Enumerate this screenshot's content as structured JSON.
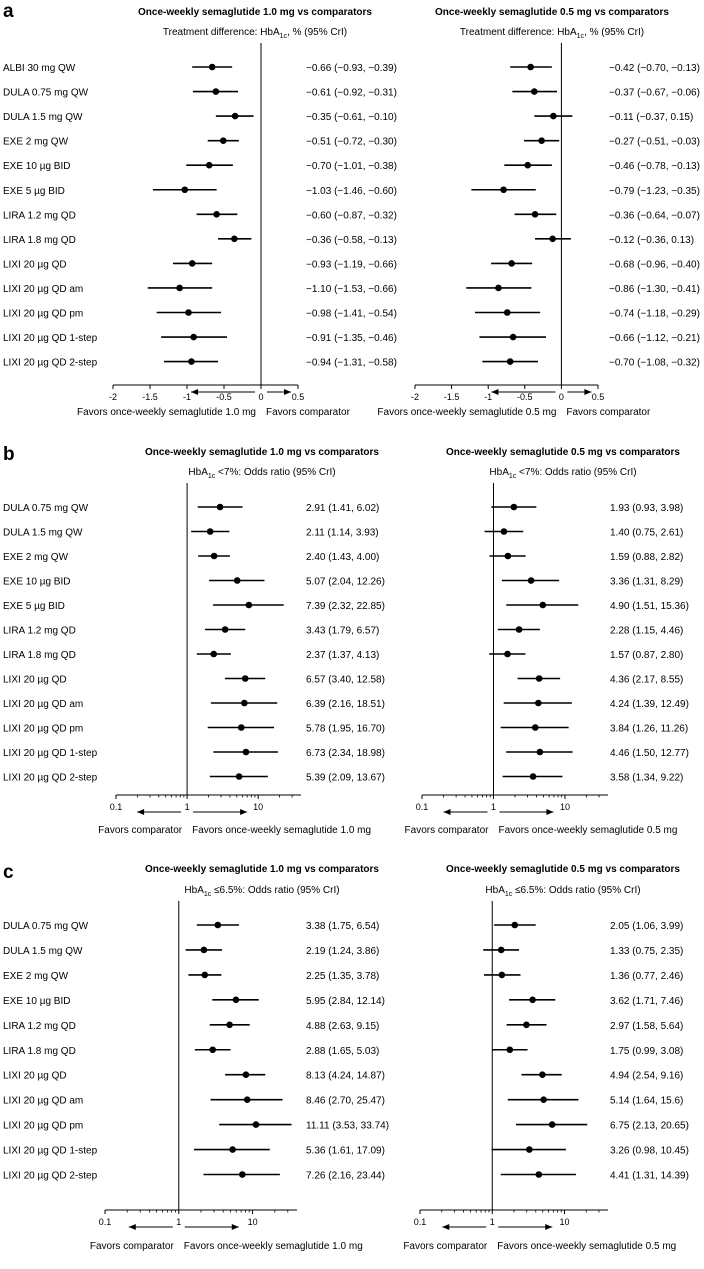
{
  "chart_data": [
    {
      "panel_label": "a",
      "type": "forest",
      "scale": "linear",
      "rows": [
        "ALBI 30 mg QW",
        "DULA 0.75 mg QW",
        "DULA 1.5 mg QW",
        "EXE 2 mg QW",
        "EXE 10 µg BID",
        "EXE 5 µg BID",
        "LIRA 1.2 mg QD",
        "LIRA 1.8 mg QD",
        "LIXI 20 µg QD",
        "LIXI 20 µg QD am",
        "LIXI 20 µg QD pm",
        "LIXI 20 µg QD 1-step",
        "LIXI 20 µg QD 2-step"
      ],
      "subplots": [
        {
          "title": "Once-weekly semaglutide 1.0 mg vs comparators",
          "subtitle_parts": [
            "Treatment difference: HbA",
            "1c",
            ", % (95% CrI)"
          ],
          "xlim": [
            -2,
            0.5
          ],
          "ref_line": 0,
          "ticks": [
            -2,
            -1.5,
            -1,
            -0.5,
            0,
            0.5
          ],
          "tick_labels": [
            "-2",
            "-1.5",
            "-1",
            "-0.5",
            "0",
            "0.5"
          ],
          "favors_left": "Favors once-weekly semaglutide 1.0 mg",
          "favors_right": "Favors comparator",
          "estimates": [
            -0.66,
            -0.61,
            -0.35,
            -0.51,
            -0.7,
            -1.03,
            -0.6,
            -0.36,
            -0.93,
            -1.1,
            -0.98,
            -0.91,
            -0.94
          ],
          "lower": [
            -0.93,
            -0.92,
            -0.61,
            -0.72,
            -1.01,
            -1.46,
            -0.87,
            -0.58,
            -1.19,
            -1.53,
            -1.41,
            -1.35,
            -1.31
          ],
          "upper": [
            -0.39,
            -0.31,
            -0.1,
            -0.3,
            -0.38,
            -0.6,
            -0.32,
            -0.13,
            -0.66,
            -0.66,
            -0.54,
            -0.46,
            -0.58
          ],
          "labels": [
            "−0.66 (−0.93, −0.39)",
            "−0.61 (−0.92, −0.31)",
            "−0.35 (−0.61, −0.10)",
            "−0.51 (−0.72, −0.30)",
            "−0.70 (−1.01, −0.38)",
            "−1.03 (−1.46, −0.60)",
            "−0.60 (−0.87, −0.32)",
            "−0.36 (−0.58, −0.13)",
            "−0.93 (−1.19, −0.66)",
            "−1.10 (−1.53, −0.66)",
            "−0.98 (−1.41, −0.54)",
            "−0.91 (−1.35, −0.46)",
            "−0.94 (−1.31, −0.58)"
          ]
        },
        {
          "title": "Once-weekly semaglutide 0.5 mg vs comparators",
          "subtitle_parts": [
            "Treatment difference: HbA",
            "1c",
            ", % (95% CrI)"
          ],
          "xlim": [
            -2,
            0.5
          ],
          "ref_line": 0,
          "ticks": [
            -2,
            -1.5,
            -1,
            -0.5,
            0,
            0.5
          ],
          "tick_labels": [
            "-2",
            "-1.5",
            "-1",
            "-0.5",
            "0",
            "0.5"
          ],
          "favors_left": "Favors once-weekly semaglutide 0.5 mg",
          "favors_right": "Favors comparator",
          "estimates": [
            -0.42,
            -0.37,
            -0.11,
            -0.27,
            -0.46,
            -0.79,
            -0.36,
            -0.12,
            -0.68,
            -0.86,
            -0.74,
            -0.66,
            -0.7
          ],
          "lower": [
            -0.7,
            -0.67,
            -0.37,
            -0.51,
            -0.78,
            -1.23,
            -0.64,
            -0.36,
            -0.96,
            -1.3,
            -1.18,
            -1.12,
            -1.08
          ],
          "upper": [
            -0.13,
            -0.06,
            0.15,
            -0.03,
            -0.13,
            -0.35,
            -0.07,
            0.13,
            -0.4,
            -0.41,
            -0.29,
            -0.21,
            -0.32
          ],
          "labels": [
            "−0.42 (−0.70, −0.13)",
            "−0.37 (−0.67, −0.06)",
            "−0.11 (−0.37, 0.15)",
            "−0.27 (−0.51, −0.03)",
            "−0.46 (−0.78, −0.13)",
            "−0.79 (−1.23, −0.35)",
            "−0.36 (−0.64, −0.07)",
            "−0.12 (−0.36, 0.13)",
            "−0.68 (−0.96, −0.40)",
            "−0.86 (−1.30, −0.41)",
            "−0.74 (−1.18, −0.29)",
            "−0.66 (−1.12, −0.21)",
            "−0.70 (−1.08, −0.32)"
          ]
        }
      ]
    },
    {
      "panel_label": "b",
      "type": "forest",
      "scale": "log",
      "rows": [
        "DULA 0.75 mg QW",
        "DULA 1.5 mg QW",
        "EXE 2 mg QW",
        "EXE 10 µg BID",
        "EXE 5 µg BID",
        "LIRA 1.2 mg QD",
        "LIRA 1.8 mg QD",
        "LIXI 20 µg QD",
        "LIXI 20 µg QD am",
        "LIXI 20 µg QD pm",
        "LIXI 20 µg QD 1-step",
        "LIXI 20 µg QD 2-step"
      ],
      "subplots": [
        {
          "title": "Once-weekly semaglutide 1.0 mg vs comparators",
          "subtitle_parts": [
            "HbA",
            "1c",
            " <7%: Odds ratio (95% CrI)"
          ],
          "xlim": [
            0.1,
            40
          ],
          "ref_line": 1,
          "ticks": [
            0.1,
            1,
            10
          ],
          "tick_labels": [
            "0.1",
            "1",
            "10"
          ],
          "favors_left": "Favors comparator",
          "favors_right": "Favors once-weekly semaglutide 1.0 mg",
          "estimates": [
            2.91,
            2.11,
            2.4,
            5.07,
            7.39,
            3.43,
            2.37,
            6.57,
            6.39,
            5.78,
            6.73,
            5.39
          ],
          "lower": [
            1.41,
            1.14,
            1.43,
            2.04,
            2.32,
            1.79,
            1.37,
            3.4,
            2.16,
            1.95,
            2.34,
            2.09
          ],
          "upper": [
            6.02,
            3.93,
            4.0,
            12.26,
            22.85,
            6.57,
            4.13,
            12.58,
            18.51,
            16.7,
            18.98,
            13.67
          ],
          "labels": [
            "2.91 (1.41, 6.02)",
            "2.11 (1.14, 3.93)",
            "2.40 (1.43, 4.00)",
            "5.07 (2.04, 12.26)",
            "7.39 (2.32, 22.85)",
            "3.43 (1.79, 6.57)",
            "2.37 (1.37, 4.13)",
            "6.57 (3.40, 12.58)",
            "6.39 (2.16, 18.51)",
            "5.78 (1.95, 16.70)",
            "6.73 (2.34, 18.98)",
            "5.39 (2.09, 13.67)"
          ]
        },
        {
          "title": "Once-weekly semaglutide 0.5 mg vs comparators",
          "subtitle_parts": [
            "HbA",
            "1c",
            " <7%: Odds ratio (95% CrI)"
          ],
          "xlim": [
            0.1,
            40
          ],
          "ref_line": 1,
          "ticks": [
            0.1,
            1,
            10
          ],
          "tick_labels": [
            "0.1",
            "1",
            "10"
          ],
          "favors_left": "Favors comparator",
          "favors_right": "Favors once-weekly semaglutide 0.5 mg",
          "estimates": [
            1.93,
            1.4,
            1.59,
            3.36,
            4.9,
            2.28,
            1.57,
            4.36,
            4.24,
            3.84,
            4.46,
            3.58
          ],
          "lower": [
            0.93,
            0.75,
            0.88,
            1.31,
            1.51,
            1.15,
            0.87,
            2.17,
            1.39,
            1.26,
            1.5,
            1.34
          ],
          "upper": [
            3.98,
            2.61,
            2.82,
            8.29,
            15.36,
            4.46,
            2.8,
            8.55,
            12.49,
            11.26,
            12.77,
            9.22
          ],
          "labels": [
            "1.93 (0.93, 3.98)",
            "1.40 (0.75, 2.61)",
            "1.59 (0.88, 2.82)",
            "3.36 (1.31, 8.29)",
            "4.90 (1.51, 15.36)",
            "2.28 (1.15, 4.46)",
            "1.57 (0.87, 2.80)",
            "4.36 (2.17, 8.55)",
            "4.24 (1.39, 12.49)",
            "3.84 (1.26, 11.26)",
            "4.46 (1.50, 12.77)",
            "3.58 (1.34, 9.22)"
          ]
        }
      ]
    },
    {
      "panel_label": "c",
      "type": "forest",
      "scale": "log",
      "rows": [
        "DULA 0.75 mg QW",
        "DULA 1.5 mg QW",
        "EXE 2 mg QW",
        "EXE 10 µg BID",
        "LIRA 1.2 mg QD",
        "LIRA 1.8 mg QD",
        "LIXI 20 µg QD",
        "LIXI 20 µg QD am",
        "LIXI 20 µg QD pm",
        "LIXI 20 µg QD 1-step",
        "LIXI 20 µg QD 2-step"
      ],
      "subplots": [
        {
          "title": "Once-weekly semaglutide 1.0 mg vs comparators",
          "subtitle_parts": [
            "HbA",
            "1c",
            " ≤6.5%: Odds ratio (95% CrI)"
          ],
          "xlim": [
            0.1,
            40
          ],
          "ref_line": 1,
          "ticks": [
            0.1,
            1,
            10
          ],
          "tick_labels": [
            "0.1",
            "1",
            "10"
          ],
          "favors_left": "Favors comparator",
          "favors_right": "Favors once-weekly semaglutide 1.0 mg",
          "estimates": [
            3.38,
            2.19,
            2.25,
            5.95,
            4.88,
            2.88,
            8.13,
            8.46,
            11.11,
            5.36,
            7.26
          ],
          "lower": [
            1.75,
            1.24,
            1.35,
            2.84,
            2.63,
            1.65,
            4.24,
            2.7,
            3.53,
            1.61,
            2.16
          ],
          "upper": [
            6.54,
            3.86,
            3.78,
            12.14,
            9.15,
            5.03,
            14.87,
            25.47,
            33.74,
            17.09,
            23.44
          ],
          "labels": [
            "3.38 (1.75, 6.54)",
            "2.19 (1.24, 3.86)",
            "2.25 (1.35, 3.78)",
            "5.95 (2.84, 12.14)",
            "4.88 (2.63, 9.15)",
            "2.88 (1.65, 5.03)",
            "8.13 (4.24, 14.87)",
            "8.46 (2.70, 25.47)",
            "11.11 (3.53, 33.74)",
            "5.36 (1.61, 17.09)",
            "7.26 (2.16, 23.44)"
          ]
        },
        {
          "title": "Once-weekly semaglutide 0.5 mg vs comparators",
          "subtitle_parts": [
            "HbA",
            "1c",
            " ≤6.5%: Odds ratio (95% CrI)"
          ],
          "xlim": [
            0.1,
            40
          ],
          "ref_line": 1,
          "ticks": [
            0.1,
            1,
            10
          ],
          "tick_labels": [
            "0.1",
            "1",
            "10"
          ],
          "favors_left": "Favors comparator",
          "favors_right": "Favors once-weekly semaglutide 0.5 mg",
          "estimates": [
            2.05,
            1.33,
            1.36,
            3.62,
            2.97,
            1.75,
            4.94,
            5.14,
            6.75,
            3.26,
            4.41
          ],
          "lower": [
            1.06,
            0.75,
            0.77,
            1.71,
            1.58,
            0.99,
            2.54,
            1.64,
            2.13,
            0.98,
            1.31
          ],
          "upper": [
            3.99,
            2.35,
            2.46,
            7.46,
            5.64,
            3.08,
            9.16,
            15.6,
            20.65,
            10.45,
            14.39
          ],
          "labels": [
            "2.05 (1.06, 3.99)",
            "1.33 (0.75, 2.35)",
            "1.36 (0.77, 2.46)",
            "3.62 (1.71, 7.46)",
            "2.97 (1.58, 5.64)",
            "1.75 (0.99, 3.08)",
            "4.94 (2.54, 9.16)",
            "5.14 (1.64, 15.6)",
            "6.75 (2.13, 20.65)",
            "3.26 (0.98, 10.45)",
            "4.41 (1.31, 14.39)"
          ]
        }
      ]
    }
  ]
}
